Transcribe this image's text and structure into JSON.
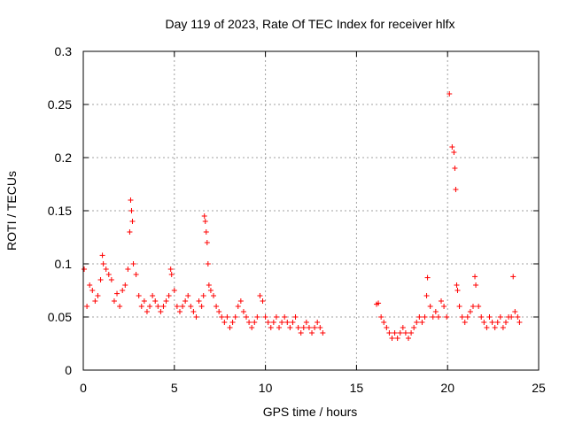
{
  "chart_data": {
    "type": "scatter",
    "title": "Day 119 of 2023, Rate Of TEC Index for receiver hlfx",
    "xlabel": "GPS time / hours",
    "ylabel": "ROTI / TECUs",
    "xlim": [
      0,
      25
    ],
    "ylim": [
      0,
      0.3
    ],
    "xticks": [
      0,
      5,
      10,
      15,
      20,
      25
    ],
    "xtick_labels": [
      "0",
      "5",
      "10",
      "15",
      "20",
      "25"
    ],
    "yticks": [
      0,
      0.05,
      0.1,
      0.15,
      0.2,
      0.25,
      0.3
    ],
    "ytick_labels": [
      "0",
      "0.05",
      "0.1",
      "0.15",
      "0.2",
      "0.25",
      "0.3"
    ],
    "grid": true,
    "marker": "plus",
    "color": "#ff0000",
    "series": [
      {
        "name": "ROTI",
        "x": [
          0.05,
          0.2,
          0.35,
          0.5,
          0.65,
          0.8,
          0.95,
          1.05,
          1.1,
          1.25,
          1.4,
          1.55,
          1.7,
          1.85,
          2.0,
          2.15,
          2.3,
          2.45,
          2.55,
          2.6,
          2.65,
          2.7,
          2.75,
          2.9,
          3.05,
          3.2,
          3.35,
          3.5,
          3.65,
          3.8,
          3.95,
          4.1,
          4.25,
          4.4,
          4.55,
          4.7,
          4.8,
          4.85,
          5.0,
          5.15,
          5.3,
          5.45,
          5.6,
          5.75,
          5.9,
          6.05,
          6.2,
          6.35,
          6.5,
          6.6,
          6.65,
          6.7,
          6.75,
          6.8,
          6.85,
          6.9,
          7.0,
          7.15,
          7.3,
          7.45,
          7.6,
          7.75,
          7.9,
          8.05,
          8.2,
          8.35,
          8.5,
          8.65,
          8.8,
          8.95,
          9.1,
          9.25,
          9.4,
          9.55,
          9.7,
          9.85,
          10.0,
          10.15,
          10.3,
          10.45,
          10.6,
          10.75,
          10.9,
          11.05,
          11.2,
          11.35,
          11.5,
          11.65,
          11.8,
          11.95,
          12.1,
          12.25,
          12.4,
          12.55,
          12.7,
          12.85,
          13.0,
          13.15,
          16.1,
          16.2,
          16.35,
          16.5,
          16.65,
          16.8,
          16.95,
          17.1,
          17.25,
          17.4,
          17.55,
          17.7,
          17.85,
          18.0,
          18.15,
          18.3,
          18.45,
          18.6,
          18.75,
          18.85,
          18.9,
          19.05,
          19.2,
          19.35,
          19.5,
          19.65,
          19.8,
          19.95,
          20.1,
          20.25,
          20.35,
          20.4,
          20.45,
          20.5,
          20.55,
          20.65,
          20.8,
          20.95,
          21.1,
          21.25,
          21.4,
          21.5,
          21.55,
          21.7,
          21.85,
          22.0,
          22.15,
          22.3,
          22.45,
          22.6,
          22.75,
          22.9,
          23.05,
          23.2,
          23.35,
          23.5,
          23.6,
          23.7,
          23.85,
          23.95
        ],
        "y": [
          0.095,
          0.06,
          0.08,
          0.075,
          0.065,
          0.07,
          0.085,
          0.108,
          0.1,
          0.095,
          0.09,
          0.085,
          0.065,
          0.072,
          0.06,
          0.075,
          0.08,
          0.095,
          0.13,
          0.16,
          0.15,
          0.14,
          0.1,
          0.09,
          0.07,
          0.06,
          0.065,
          0.055,
          0.06,
          0.07,
          0.065,
          0.06,
          0.055,
          0.06,
          0.065,
          0.07,
          0.095,
          0.09,
          0.075,
          0.06,
          0.055,
          0.06,
          0.065,
          0.07,
          0.06,
          0.055,
          0.05,
          0.065,
          0.06,
          0.07,
          0.145,
          0.14,
          0.13,
          0.12,
          0.1,
          0.08,
          0.075,
          0.07,
          0.06,
          0.055,
          0.05,
          0.045,
          0.05,
          0.04,
          0.045,
          0.05,
          0.06,
          0.065,
          0.055,
          0.05,
          0.045,
          0.04,
          0.045,
          0.05,
          0.07,
          0.065,
          0.05,
          0.045,
          0.04,
          0.045,
          0.05,
          0.04,
          0.045,
          0.05,
          0.045,
          0.04,
          0.045,
          0.05,
          0.04,
          0.035,
          0.04,
          0.045,
          0.04,
          0.035,
          0.04,
          0.045,
          0.04,
          0.035,
          0.062,
          0.063,
          0.05,
          0.045,
          0.04,
          0.035,
          0.03,
          0.035,
          0.03,
          0.035,
          0.04,
          0.035,
          0.03,
          0.035,
          0.04,
          0.045,
          0.05,
          0.045,
          0.05,
          0.07,
          0.087,
          0.06,
          0.05,
          0.055,
          0.05,
          0.065,
          0.06,
          0.05,
          0.26,
          0.21,
          0.205,
          0.19,
          0.17,
          0.08,
          0.075,
          0.06,
          0.05,
          0.045,
          0.05,
          0.055,
          0.06,
          0.088,
          0.08,
          0.06,
          0.05,
          0.045,
          0.04,
          0.05,
          0.045,
          0.04,
          0.045,
          0.05,
          0.04,
          0.045,
          0.05,
          0.05,
          0.088,
          0.055,
          0.05,
          0.045
        ]
      }
    ]
  }
}
